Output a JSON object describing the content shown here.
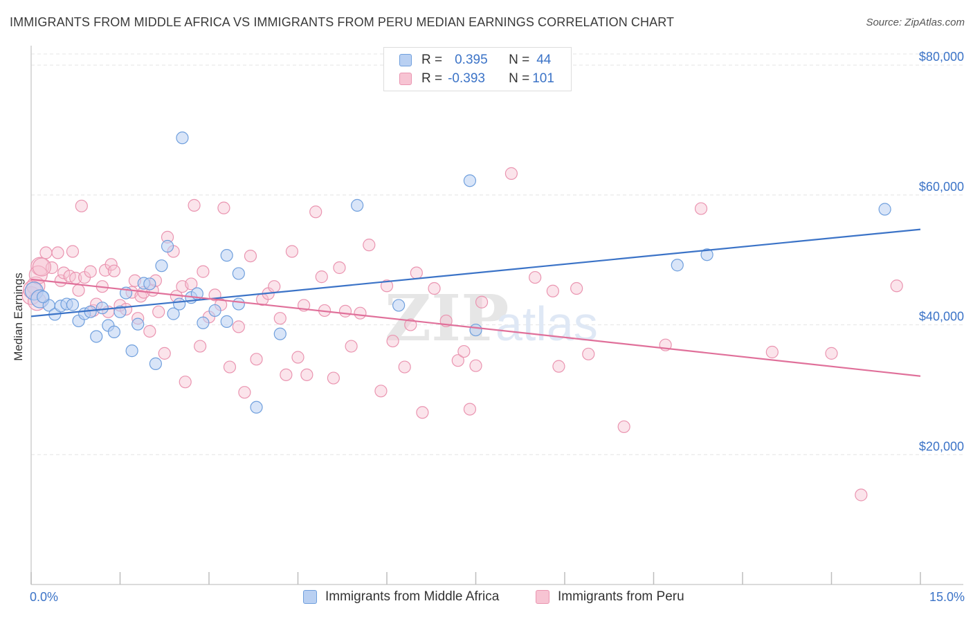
{
  "title": "IMMIGRANTS FROM MIDDLE AFRICA VS IMMIGRANTS FROM PERU MEDIAN EARNINGS CORRELATION CHART",
  "source": "Source: ZipAtlas.com",
  "legend": {
    "r_label": "R =",
    "n_label": "N =",
    "blue": {
      "r": "0.395",
      "n": "44"
    },
    "pink": {
      "r": "-0.393",
      "n": "101"
    }
  },
  "watermark": {
    "zip": "ZIP",
    "atlas": "atlas"
  },
  "colors": {
    "blue": "#3b73c7",
    "blue_fill": "#b9d0f2",
    "pink": "#e0709a",
    "pink_fill": "#f7c4d3"
  },
  "chart_data": {
    "type": "scatter",
    "title": "IMMIGRANTS FROM MIDDLE AFRICA VS IMMIGRANTS FROM PERU MEDIAN EARNINGS CORRELATION CHART",
    "xlabel": "",
    "ylabel": "Median Earnings",
    "xlim": [
      0,
      15
    ],
    "ylim": [
      0,
      83000
    ],
    "x_tick_labels": [
      "0.0%",
      "15.0%"
    ],
    "y_ticks": [
      20000,
      40000,
      60000,
      80000
    ],
    "y_tick_labels": [
      "$20,000",
      "$40,000",
      "$60,000",
      "$80,000"
    ],
    "series": [
      {
        "name": "Immigrants from Middle Africa",
        "color": "#3b73c7",
        "trend": {
          "x": [
            0,
            15
          ],
          "y": [
            41300,
            54700
          ]
        },
        "points": [
          [
            0.05,
            45200
          ],
          [
            0.15,
            44000
          ],
          [
            0.3,
            43000
          ],
          [
            0.4,
            41600
          ],
          [
            0.5,
            42900
          ],
          [
            0.6,
            43200
          ],
          [
            0.8,
            40600
          ],
          [
            0.9,
            41700
          ],
          [
            1.0,
            42000
          ],
          [
            1.1,
            38200
          ],
          [
            1.2,
            42600
          ],
          [
            1.3,
            39900
          ],
          [
            1.4,
            38900
          ],
          [
            1.5,
            42000
          ],
          [
            1.6,
            44900
          ],
          [
            1.7,
            36000
          ],
          [
            1.8,
            40100
          ],
          [
            1.9,
            46400
          ],
          [
            2.0,
            46300
          ],
          [
            2.1,
            34000
          ],
          [
            2.2,
            49100
          ],
          [
            2.3,
            52100
          ],
          [
            2.4,
            41700
          ],
          [
            2.5,
            43200
          ],
          [
            2.55,
            68800
          ],
          [
            2.7,
            44200
          ],
          [
            2.8,
            44800
          ],
          [
            2.9,
            40300
          ],
          [
            3.1,
            42200
          ],
          [
            3.3,
            40500
          ],
          [
            3.3,
            50700
          ],
          [
            3.5,
            47900
          ],
          [
            3.5,
            43200
          ],
          [
            3.8,
            27300
          ],
          [
            4.2,
            38600
          ],
          [
            5.5,
            58400
          ],
          [
            6.2,
            43000
          ],
          [
            7.4,
            62200
          ],
          [
            7.5,
            39200
          ],
          [
            10.9,
            49200
          ],
          [
            11.4,
            50800
          ],
          [
            14.4,
            57800
          ],
          [
            0.2,
            44300
          ],
          [
            0.7,
            43100
          ]
        ]
      },
      {
        "name": "Immigrants from Peru",
        "color": "#e0709a",
        "trend": {
          "x": [
            0,
            15
          ],
          "y": [
            47000,
            32100
          ]
        },
        "points": [
          [
            0.0,
            44500
          ],
          [
            0.08,
            46000
          ],
          [
            0.15,
            49000
          ],
          [
            0.25,
            51100
          ],
          [
            0.35,
            48800
          ],
          [
            0.45,
            51100
          ],
          [
            0.5,
            46800
          ],
          [
            0.55,
            48000
          ],
          [
            0.65,
            47500
          ],
          [
            0.7,
            51300
          ],
          [
            0.75,
            47200
          ],
          [
            0.8,
            45300
          ],
          [
            0.85,
            58300
          ],
          [
            0.9,
            47300
          ],
          [
            1.0,
            48200
          ],
          [
            1.05,
            42200
          ],
          [
            1.1,
            43200
          ],
          [
            1.2,
            45900
          ],
          [
            1.25,
            48400
          ],
          [
            1.3,
            42000
          ],
          [
            1.35,
            49300
          ],
          [
            1.4,
            48300
          ],
          [
            1.5,
            43000
          ],
          [
            1.6,
            42400
          ],
          [
            1.7,
            45000
          ],
          [
            1.75,
            46800
          ],
          [
            1.8,
            41000
          ],
          [
            1.85,
            44400
          ],
          [
            1.9,
            45000
          ],
          [
            2.0,
            39000
          ],
          [
            2.05,
            45300
          ],
          [
            2.1,
            46800
          ],
          [
            2.15,
            42000
          ],
          [
            2.25,
            35600
          ],
          [
            2.3,
            53500
          ],
          [
            2.4,
            51300
          ],
          [
            2.45,
            44400
          ],
          [
            2.55,
            45900
          ],
          [
            2.6,
            31200
          ],
          [
            2.7,
            46300
          ],
          [
            2.75,
            58400
          ],
          [
            2.85,
            36700
          ],
          [
            2.9,
            48200
          ],
          [
            3.0,
            41200
          ],
          [
            3.1,
            44600
          ],
          [
            3.2,
            43100
          ],
          [
            3.25,
            58000
          ],
          [
            3.35,
            33500
          ],
          [
            3.5,
            39700
          ],
          [
            3.6,
            29600
          ],
          [
            3.7,
            50600
          ],
          [
            3.8,
            34700
          ],
          [
            3.9,
            43900
          ],
          [
            4.0,
            44800
          ],
          [
            4.1,
            45900
          ],
          [
            4.2,
            41000
          ],
          [
            4.3,
            32300
          ],
          [
            4.4,
            51300
          ],
          [
            4.5,
            35000
          ],
          [
            4.6,
            43000
          ],
          [
            4.65,
            32300
          ],
          [
            4.8,
            57400
          ],
          [
            4.9,
            47400
          ],
          [
            4.95,
            42200
          ],
          [
            5.1,
            31800
          ],
          [
            5.2,
            48800
          ],
          [
            5.3,
            42100
          ],
          [
            5.4,
            36700
          ],
          [
            5.55,
            41800
          ],
          [
            5.7,
            52300
          ],
          [
            5.9,
            29800
          ],
          [
            6.0,
            46000
          ],
          [
            6.1,
            37500
          ],
          [
            6.3,
            33500
          ],
          [
            6.4,
            40000
          ],
          [
            6.5,
            48000
          ],
          [
            6.6,
            26500
          ],
          [
            6.8,
            45600
          ],
          [
            7.0,
            40600
          ],
          [
            7.2,
            34500
          ],
          [
            7.3,
            35900
          ],
          [
            7.4,
            27000
          ],
          [
            7.5,
            33700
          ],
          [
            7.6,
            43500
          ],
          [
            8.1,
            63300
          ],
          [
            8.5,
            47300
          ],
          [
            8.8,
            45200
          ],
          [
            8.9,
            33600
          ],
          [
            9.2,
            45600
          ],
          [
            9.4,
            35500
          ],
          [
            10.0,
            24300
          ],
          [
            10.7,
            36900
          ],
          [
            11.3,
            57900
          ],
          [
            12.5,
            35800
          ],
          [
            13.5,
            35600
          ],
          [
            14.0,
            13800
          ],
          [
            14.6,
            46000
          ],
          [
            0.02,
            45400
          ],
          [
            0.1,
            43600
          ],
          [
            0.12,
            47700
          ],
          [
            0.18,
            48900
          ]
        ]
      }
    ]
  }
}
